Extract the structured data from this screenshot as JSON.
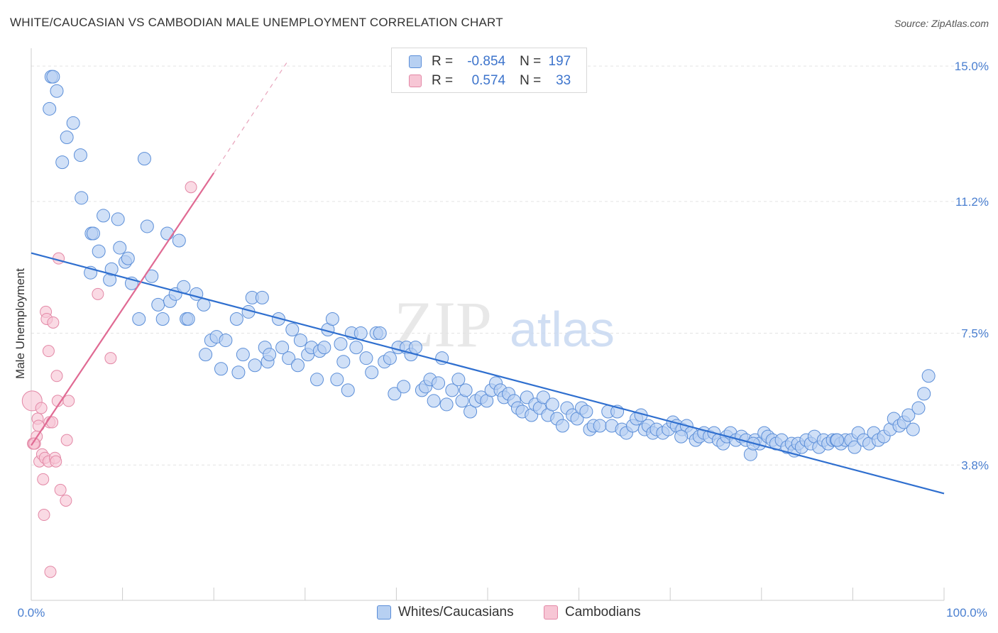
{
  "title": "WHITE/CAUCASIAN VS CAMBODIAN MALE UNEMPLOYMENT CORRELATION CHART",
  "source": "Source: ZipAtlas.com",
  "watermark": {
    "zip": "ZIP",
    "atlas": "atlas"
  },
  "legend": {
    "r_label": "R =",
    "n_label": "N =",
    "rows": [
      {
        "name": "Whites/Caucasians",
        "r": "-0.854",
        "n": "197",
        "fill": "#b7d0f2",
        "stroke": "#5b8ed8"
      },
      {
        "name": "Cambodians",
        "r": "0.574",
        "n": "33",
        "fill": "#f7c6d5",
        "stroke": "#e388a6"
      }
    ]
  },
  "chart_data": {
    "type": "scatter",
    "title": "WHITE/CAUCASIAN VS CAMBODIAN MALE UNEMPLOYMENT CORRELATION CHART",
    "xlabel": "",
    "ylabel": "Male Unemployment",
    "xlim": [
      0,
      100
    ],
    "ylim": [
      0,
      15.5
    ],
    "x_tick_labels": [
      "0.0%",
      "100.0%"
    ],
    "y_ticks": [
      {
        "value": 3.8,
        "label": "3.8%"
      },
      {
        "value": 7.5,
        "label": "7.5%"
      },
      {
        "value": 11.2,
        "label": "11.2%"
      },
      {
        "value": 15.0,
        "label": "15.0%"
      }
    ],
    "grid": true,
    "legend_position": "bottom-center",
    "series": [
      {
        "name": "Whites/Caucasians",
        "color": "#5b8ed8",
        "fill": "#b7d0f2",
        "r": -0.854,
        "n": 197,
        "trendline": {
          "x": [
            0,
            100
          ],
          "y": [
            9.75,
            3.0
          ]
        },
        "points": [
          [
            2,
            13.8
          ],
          [
            2.2,
            14.7
          ],
          [
            2.4,
            14.7
          ],
          [
            2.8,
            14.3
          ],
          [
            3.4,
            12.3
          ],
          [
            3.9,
            13.0
          ],
          [
            4.6,
            13.4
          ],
          [
            5.4,
            12.5
          ],
          [
            5.5,
            11.3
          ],
          [
            6.6,
            10.3
          ],
          [
            6.5,
            9.2
          ],
          [
            6.8,
            10.3
          ],
          [
            7.4,
            9.8
          ],
          [
            7.9,
            10.8
          ],
          [
            8.6,
            9.0
          ],
          [
            8.8,
            9.3
          ],
          [
            9.5,
            10.7
          ],
          [
            9.7,
            9.9
          ],
          [
            10.3,
            9.5
          ],
          [
            10.6,
            9.6
          ],
          [
            11,
            8.9
          ],
          [
            11.8,
            7.9
          ],
          [
            12.4,
            12.4
          ],
          [
            12.7,
            10.5
          ],
          [
            13.2,
            9.1
          ],
          [
            13.9,
            8.3
          ],
          [
            14.4,
            7.9
          ],
          [
            14.9,
            10.3
          ],
          [
            15.2,
            8.4
          ],
          [
            15.8,
            8.6
          ],
          [
            16.2,
            10.1
          ],
          [
            16.7,
            8.8
          ],
          [
            17,
            7.9
          ],
          [
            17.2,
            7.9
          ],
          [
            18.1,
            8.6
          ],
          [
            18.9,
            8.3
          ],
          [
            19.1,
            6.9
          ],
          [
            19.7,
            7.3
          ],
          [
            20.3,
            7.4
          ],
          [
            20.8,
            6.5
          ],
          [
            21.3,
            7.3
          ],
          [
            22.5,
            7.9
          ],
          [
            22.7,
            6.4
          ],
          [
            23.2,
            6.9
          ],
          [
            23.8,
            8.1
          ],
          [
            24.2,
            8.5
          ],
          [
            24.5,
            6.6
          ],
          [
            25.3,
            8.5
          ],
          [
            25.6,
            7.1
          ],
          [
            25.9,
            6.7
          ],
          [
            26.1,
            6.9
          ],
          [
            27.1,
            7.9
          ],
          [
            27.5,
            7.1
          ],
          [
            28.2,
            6.8
          ],
          [
            28.6,
            7.6
          ],
          [
            29.2,
            6.6
          ],
          [
            29.5,
            7.3
          ],
          [
            30.3,
            6.9
          ],
          [
            30.7,
            7.1
          ],
          [
            31.3,
            6.2
          ],
          [
            31.6,
            7.0
          ],
          [
            32.1,
            7.1
          ],
          [
            32.5,
            7.6
          ],
          [
            33,
            7.9
          ],
          [
            33.5,
            6.2
          ],
          [
            33.9,
            7.2
          ],
          [
            34.2,
            6.7
          ],
          [
            34.7,
            5.9
          ],
          [
            35.1,
            7.5
          ],
          [
            35.6,
            7.1
          ],
          [
            36.1,
            7.5
          ],
          [
            36.7,
            6.8
          ],
          [
            37.3,
            6.4
          ],
          [
            37.8,
            7.5
          ],
          [
            38.2,
            7.5
          ],
          [
            38.7,
            6.7
          ],
          [
            39.3,
            6.8
          ],
          [
            39.8,
            5.8
          ],
          [
            40.2,
            7.1
          ],
          [
            40.8,
            6.0
          ],
          [
            41.1,
            7.1
          ],
          [
            41.6,
            6.9
          ],
          [
            42.1,
            7.1
          ],
          [
            42.8,
            5.9
          ],
          [
            43.2,
            6.0
          ],
          [
            43.7,
            6.2
          ],
          [
            44.1,
            5.6
          ],
          [
            44.6,
            6.1
          ],
          [
            45,
            6.8
          ],
          [
            45.5,
            5.5
          ],
          [
            46.1,
            5.9
          ],
          [
            46.8,
            6.2
          ],
          [
            47.2,
            5.6
          ],
          [
            47.6,
            5.9
          ],
          [
            48.1,
            5.3
          ],
          [
            48.7,
            5.6
          ],
          [
            49.3,
            5.7
          ],
          [
            49.9,
            5.6
          ],
          [
            50.4,
            5.9
          ],
          [
            50.9,
            6.1
          ],
          [
            51.4,
            5.9
          ],
          [
            51.8,
            5.7
          ],
          [
            52.3,
            5.8
          ],
          [
            52.9,
            5.6
          ],
          [
            53.3,
            5.4
          ],
          [
            53.8,
            5.3
          ],
          [
            54.3,
            5.7
          ],
          [
            54.8,
            5.2
          ],
          [
            55.2,
            5.5
          ],
          [
            55.7,
            5.4
          ],
          [
            56.1,
            5.7
          ],
          [
            56.6,
            5.2
          ],
          [
            57.1,
            5.5
          ],
          [
            57.6,
            5.1
          ],
          [
            58.2,
            4.9
          ],
          [
            58.7,
            5.4
          ],
          [
            59.3,
            5.2
          ],
          [
            59.8,
            5.1
          ],
          [
            60.3,
            5.4
          ],
          [
            60.8,
            5.3
          ],
          [
            61.2,
            4.8
          ],
          [
            61.6,
            4.9
          ],
          [
            62.3,
            4.9
          ],
          [
            63.2,
            5.3
          ],
          [
            63.6,
            4.9
          ],
          [
            64.2,
            5.3
          ],
          [
            64.7,
            4.8
          ],
          [
            65.2,
            4.7
          ],
          [
            65.9,
            4.9
          ],
          [
            66.3,
            5.1
          ],
          [
            66.8,
            5.2
          ],
          [
            67.2,
            4.8
          ],
          [
            67.6,
            4.9
          ],
          [
            68.1,
            4.7
          ],
          [
            68.5,
            4.8
          ],
          [
            69.2,
            4.7
          ],
          [
            69.8,
            4.8
          ],
          [
            70.3,
            5.0
          ],
          [
            70.7,
            4.9
          ],
          [
            71.3,
            4.8
          ],
          [
            71.8,
            4.9
          ],
          [
            72.3,
            4.7
          ],
          [
            72.8,
            4.5
          ],
          [
            73.2,
            4.6
          ],
          [
            73.7,
            4.7
          ],
          [
            74.3,
            4.6
          ],
          [
            74.8,
            4.7
          ],
          [
            75.3,
            4.5
          ],
          [
            75.8,
            4.4
          ],
          [
            76.2,
            4.6
          ],
          [
            76.6,
            4.7
          ],
          [
            77.2,
            4.5
          ],
          [
            77.8,
            4.6
          ],
          [
            78.3,
            4.5
          ],
          [
            78.8,
            4.1
          ],
          [
            79.3,
            4.5
          ],
          [
            79.8,
            4.4
          ],
          [
            80.3,
            4.7
          ],
          [
            80.7,
            4.6
          ],
          [
            81.2,
            4.5
          ],
          [
            81.6,
            4.4
          ],
          [
            82.2,
            4.5
          ],
          [
            82.8,
            4.3
          ],
          [
            83.3,
            4.4
          ],
          [
            83.6,
            4.2
          ],
          [
            84,
            4.4
          ],
          [
            84.4,
            4.3
          ],
          [
            84.9,
            4.5
          ],
          [
            85.4,
            4.4
          ],
          [
            85.8,
            4.6
          ],
          [
            86.3,
            4.3
          ],
          [
            86.8,
            4.5
          ],
          [
            87.3,
            4.4
          ],
          [
            87.8,
            4.5
          ],
          [
            88.2,
            4.5
          ],
          [
            88.7,
            4.4
          ],
          [
            89.2,
            4.5
          ],
          [
            89.8,
            4.5
          ],
          [
            90.2,
            4.3
          ],
          [
            90.6,
            4.7
          ],
          [
            91.2,
            4.5
          ],
          [
            91.8,
            4.4
          ],
          [
            92.3,
            4.7
          ],
          [
            92.8,
            4.5
          ],
          [
            93.4,
            4.6
          ],
          [
            94.1,
            4.8
          ],
          [
            94.5,
            5.1
          ],
          [
            95.1,
            4.9
          ],
          [
            95.6,
            5.0
          ],
          [
            96.1,
            5.2
          ],
          [
            96.6,
            4.8
          ],
          [
            97.2,
            5.4
          ],
          [
            97.8,
            5.8
          ],
          [
            98.3,
            6.3
          ],
          [
            88.3,
            4.5
          ],
          [
            79.1,
            4.4
          ],
          [
            71.2,
            4.6
          ]
        ]
      },
      {
        "name": "Cambodians",
        "color": "#e388a6",
        "fill": "#f7c6d5",
        "r": 0.574,
        "n": 33,
        "trendline": {
          "x": [
            0,
            20
          ],
          "y": [
            4.35,
            12.0
          ]
        },
        "trendline_dashed_extension": {
          "x": [
            20,
            28
          ],
          "y": [
            12.0,
            15.1
          ]
        },
        "points": [
          [
            0.1,
            5.6
          ],
          [
            0.2,
            4.4
          ],
          [
            0.4,
            4.4
          ],
          [
            0.6,
            4.6
          ],
          [
            0.7,
            5.1
          ],
          [
            0.8,
            4.9
          ],
          [
            0.9,
            3.9
          ],
          [
            1.1,
            5.4
          ],
          [
            1.2,
            4.1
          ],
          [
            1.3,
            3.4
          ],
          [
            1.4,
            2.4
          ],
          [
            1.5,
            4.0
          ],
          [
            1.6,
            8.1
          ],
          [
            1.7,
            7.9
          ],
          [
            1.9,
            3.9
          ],
          [
            1.9,
            7.0
          ],
          [
            2.0,
            5.0
          ],
          [
            2.1,
            0.8
          ],
          [
            2.3,
            5.0
          ],
          [
            2.4,
            7.8
          ],
          [
            2.6,
            4.0
          ],
          [
            2.7,
            3.9
          ],
          [
            2.8,
            6.3
          ],
          [
            2.9,
            5.6
          ],
          [
            3.0,
            9.6
          ],
          [
            3.2,
            3.1
          ],
          [
            3.8,
            2.8
          ],
          [
            3.9,
            4.5
          ],
          [
            4.1,
            5.6
          ],
          [
            7.3,
            8.6
          ],
          [
            8.7,
            6.8
          ],
          [
            17.5,
            11.6
          ],
          [
            0.3,
            4.4
          ]
        ]
      }
    ]
  }
}
